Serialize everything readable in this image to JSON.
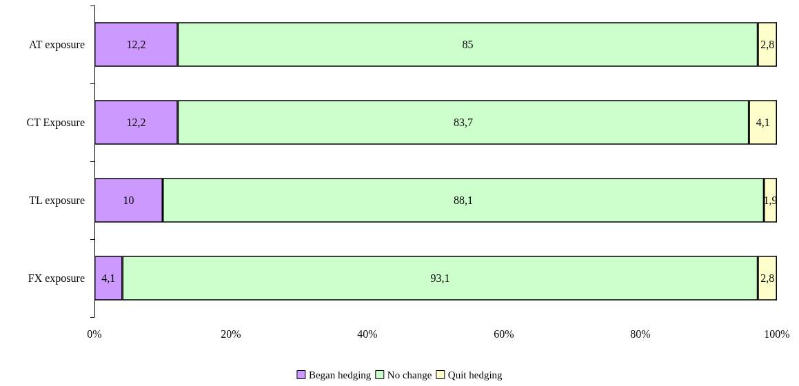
{
  "chart_data": {
    "type": "bar",
    "orientation": "horizontal",
    "stacked": true,
    "categories": [
      "AT exposure",
      "CT Exposure",
      "TL exposure",
      "FX exposure"
    ],
    "series": [
      {
        "name": "Began hedging",
        "color": "#cc99ff",
        "values": [
          12.2,
          12.2,
          10,
          4.1
        ],
        "value_labels": [
          "12,2",
          "12,2",
          "10",
          "4,1"
        ]
      },
      {
        "name": "No change",
        "color": "#ccffcc",
        "values": [
          85,
          83.7,
          88.1,
          93.1
        ],
        "value_labels": [
          "85",
          "83,7",
          "88,1",
          "93,1"
        ]
      },
      {
        "name": "Quit hedging",
        "color": "#ffffcc",
        "values": [
          2.8,
          4.1,
          1.9,
          2.8
        ],
        "value_labels": [
          "2,8",
          "4,1",
          "1,9",
          "2,8"
        ]
      }
    ],
    "xlim": [
      0,
      100
    ],
    "xticks": [
      {
        "value": 0,
        "label": "0%"
      },
      {
        "value": 20,
        "label": "20%"
      },
      {
        "value": 40,
        "label": "40%"
      },
      {
        "value": 60,
        "label": "60%"
      },
      {
        "value": 80,
        "label": "80%"
      },
      {
        "value": 100,
        "label": "100%"
      }
    ],
    "grid": false,
    "legend": "bottom"
  }
}
